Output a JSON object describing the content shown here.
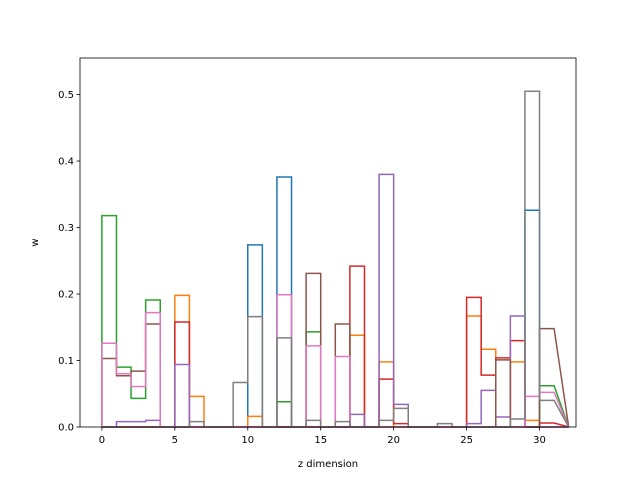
{
  "chart_data": {
    "type": "step-histogram",
    "xlabel": "z dimension",
    "ylabel": "w",
    "xlim": [
      -1.5,
      32.5
    ],
    "ylim": [
      0,
      0.555
    ],
    "xticks": [
      0,
      5,
      10,
      15,
      20,
      25,
      30
    ],
    "yticks": [
      0.0,
      0.1,
      0.2,
      0.3,
      0.4,
      0.5
    ],
    "ytick_labels": [
      "0.0",
      "0.1",
      "0.2",
      "0.3",
      "0.4",
      "0.5"
    ],
    "bin_edges": [
      0,
      1,
      2,
      3,
      4,
      5,
      6,
      7,
      8,
      9,
      10,
      11,
      12,
      13,
      14,
      15,
      16,
      17,
      18,
      19,
      20,
      21,
      22,
      23,
      24,
      25,
      26,
      27,
      28,
      29,
      30,
      31
    ],
    "series": [
      {
        "color": "#1f77b4",
        "values": [
          0,
          0,
          0,
          0,
          0,
          0,
          0,
          0,
          0,
          0,
          0.274,
          0,
          0.376,
          0,
          0,
          0,
          0,
          0,
          0,
          0,
          0,
          0,
          0,
          0,
          0,
          0,
          0,
          0,
          0,
          0.326,
          0
        ]
      },
      {
        "color": "#ff7f0e",
        "values": [
          0,
          0,
          0,
          0,
          0,
          0.198,
          0.046,
          0,
          0,
          0,
          0.016,
          0,
          0,
          0,
          0,
          0,
          0,
          0.138,
          0,
          0.098,
          0,
          0,
          0,
          0,
          0,
          0.167,
          0.117,
          0,
          0.098,
          0.01,
          0
        ]
      },
      {
        "color": "#2ca02c",
        "values": [
          0.318,
          0.09,
          0.043,
          0.191,
          0,
          0,
          0,
          0,
          0,
          0,
          0,
          0,
          0.038,
          0,
          0.143,
          0,
          0,
          0,
          0,
          0,
          0,
          0,
          0,
          0,
          0,
          0,
          0,
          0,
          0,
          0,
          0.062
        ]
      },
      {
        "color": "#d62728",
        "values": [
          0,
          0,
          0,
          0,
          0,
          0.158,
          0,
          0,
          0,
          0,
          0,
          0,
          0,
          0,
          0,
          0,
          0,
          0.242,
          0,
          0.072,
          0.005,
          0,
          0,
          0,
          0,
          0.195,
          0.078,
          0.104,
          0.13,
          0,
          0.006
        ]
      },
      {
        "color": "#9467bd",
        "values": [
          0,
          0.008,
          0.008,
          0.01,
          0,
          0.094,
          0,
          0,
          0,
          0,
          0,
          0,
          0,
          0,
          0,
          0,
          0,
          0.019,
          0,
          0.38,
          0.034,
          0,
          0,
          0,
          0,
          0.005,
          0.055,
          0.015,
          0.167,
          0,
          0
        ]
      },
      {
        "color": "#8c564b",
        "values": [
          0.103,
          0.077,
          0.084,
          0.155,
          0,
          0,
          0,
          0,
          0,
          0,
          0,
          0,
          0,
          0,
          0.231,
          0,
          0.155,
          0,
          0,
          0,
          0,
          0,
          0,
          0,
          0,
          0,
          0,
          0.101,
          0,
          0,
          0.148
        ]
      },
      {
        "color": "#e377c2",
        "values": [
          0.126,
          0.08,
          0.061,
          0.172,
          0,
          0,
          0,
          0,
          0,
          0,
          0,
          0,
          0.199,
          0,
          0.122,
          0,
          0.106,
          0,
          0,
          0,
          0,
          0,
          0,
          0,
          0,
          0,
          0,
          0,
          0,
          0.046,
          0.052
        ]
      },
      {
        "color": "#7f7f7f",
        "values": [
          0,
          0,
          0,
          0,
          0,
          0,
          0.008,
          0,
          0,
          0.067,
          0.166,
          0,
          0.134,
          0,
          0.01,
          0,
          0.008,
          0,
          0,
          0.01,
          0.028,
          0,
          0,
          0.005,
          0,
          0,
          0,
          0,
          0.012,
          0.505,
          0.04
        ]
      }
    ]
  }
}
